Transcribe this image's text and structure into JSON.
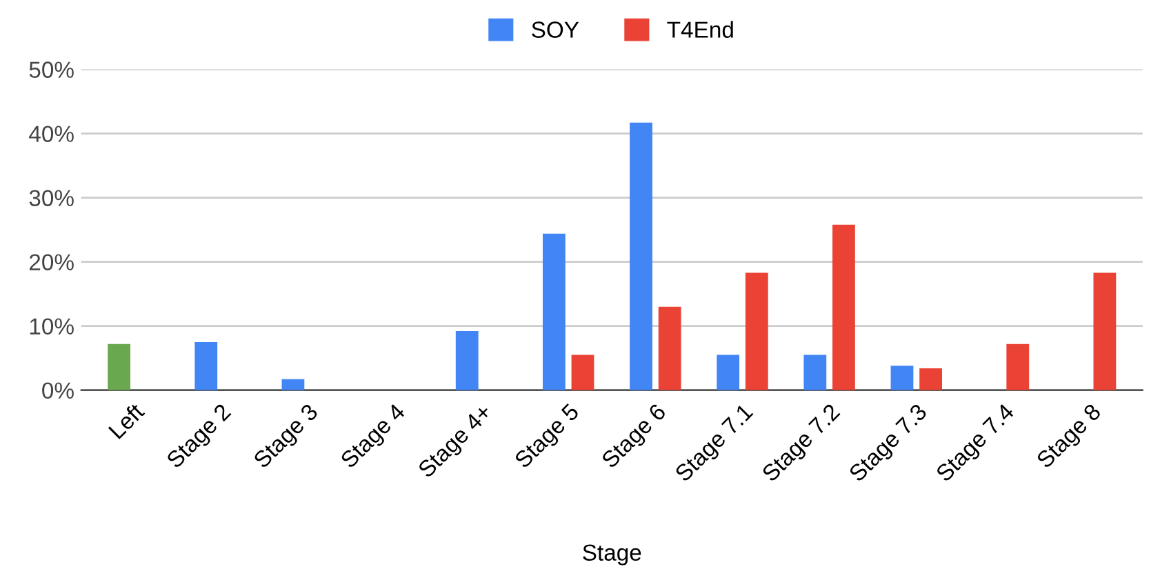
{
  "chart_data": {
    "type": "bar",
    "xlabel": "Stage",
    "categories": [
      "Left",
      "Stage 2",
      "Stage 3",
      "Stage 4",
      "Stage 4+",
      "Stage 5",
      "Stage 6",
      "Stage 7.1",
      "Stage 7.2",
      "Stage 7.3",
      "Stage 7.4",
      "Stage 8"
    ],
    "series": [
      {
        "name": "SOY",
        "color": "#4285f4",
        "colors": [
          "#6aa84f",
          "#4285f4",
          "#4285f4",
          "#4285f4",
          "#4285f4",
          "#4285f4",
          "#4285f4",
          "#4285f4",
          "#4285f4",
          "#4285f4",
          "#4285f4",
          "#4285f4"
        ],
        "values": [
          7.2,
          7.5,
          1.7,
          0,
          9.2,
          24.4,
          41.7,
          5.5,
          5.5,
          3.8,
          0,
          0
        ]
      },
      {
        "name": "T4End",
        "color": "#ea4335",
        "values": [
          0,
          0,
          0,
          0,
          0,
          5.5,
          13.0,
          18.3,
          25.8,
          3.4,
          7.2,
          18.3
        ]
      }
    ],
    "ylim": [
      0,
      50
    ],
    "yticks": [
      {
        "value": 0,
        "label": "0%"
      },
      {
        "value": 10,
        "label": "10%"
      },
      {
        "value": 20,
        "label": "20%"
      },
      {
        "value": 30,
        "label": "30%"
      },
      {
        "value": 40,
        "label": "40%"
      },
      {
        "value": 50,
        "label": "50%"
      }
    ],
    "grid": "y",
    "legend": "top"
  }
}
